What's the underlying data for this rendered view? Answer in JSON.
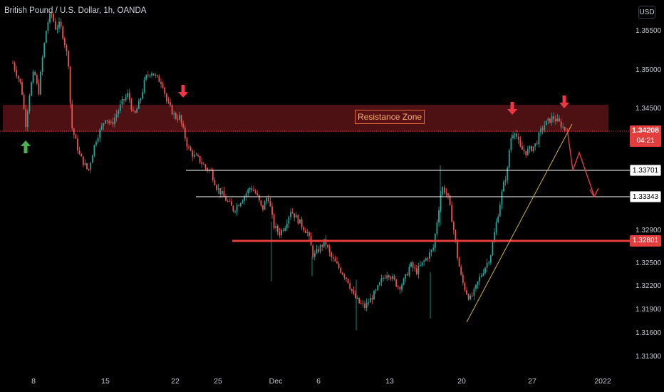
{
  "chart_data": {
    "type": "candlestick",
    "title": "British Pound / U.S. Dollar, 1h, OANDA",
    "currency": "USD",
    "y_ticks": [
      "1.35500",
      "1.35000",
      "1.34500",
      "1.34208",
      "1.33701",
      "1.33343",
      "1.32900",
      "1.32801",
      "1.32500",
      "1.32200",
      "1.31900",
      "1.31600",
      "1.31300"
    ],
    "y_axis_labels": [
      "1.35500",
      "1.35000",
      "1.34500",
      "1.32900",
      "1.32500",
      "1.32200",
      "1.31900",
      "1.31600",
      "1.31300"
    ],
    "x_ticks": [
      "8",
      "15",
      "22",
      "25",
      "Dec",
      "6",
      "13",
      "20",
      "27",
      "2022"
    ],
    "current_price": "1.34208",
    "countdown": "04:21",
    "levels": [
      {
        "label": "1.33701",
        "value": 1.33701,
        "color": "#ffffff"
      },
      {
        "label": "1.33343",
        "value": 1.33343,
        "color": "#ffffff"
      },
      {
        "label": "1.32801",
        "value": 1.32801,
        "color": "#e33d3d"
      }
    ],
    "resistance_zone": {
      "label": "Resistance Zone",
      "from": 1.3421,
      "to": 1.3456
    },
    "annotations": [
      "down-arrow",
      "down-arrow",
      "down-arrow",
      "up-arrow"
    ],
    "colors": {
      "up": "#26a69a",
      "down": "#ef5350",
      "zone": "#5a1418",
      "level_red": "#e33d3d",
      "trendline": "#d4b04c"
    }
  }
}
